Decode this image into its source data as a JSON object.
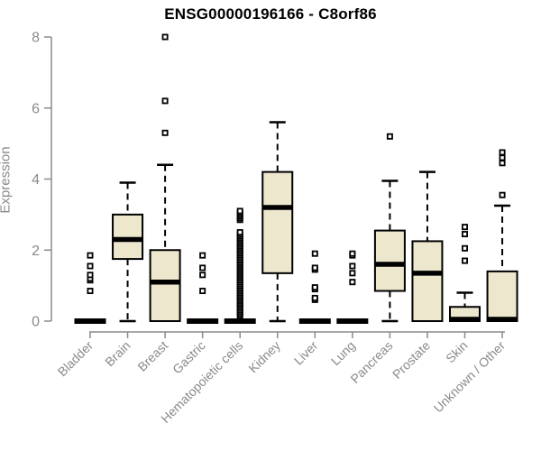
{
  "header": {
    "title": "ENSG00000196166 - C8orf86"
  },
  "chart_data": {
    "type": "boxplot",
    "title": "ENSG00000196166 - C8orf86",
    "xlabel": "",
    "ylabel": "Expression",
    "ylim": [
      0,
      8
    ],
    "yticks": [
      0,
      2,
      4,
      6,
      8
    ],
    "grid": false,
    "legend": "none",
    "colors": {
      "box_fill": "#EDE7CE",
      "box_stroke": "#000000",
      "median": "#000000",
      "whisker": "#000000",
      "outlier_stroke": "#000000",
      "outlier_fill": "#ffffff",
      "axis": "#8a8a8a",
      "tick_label": "#8a8a8a",
      "title": "#000000",
      "background": "#ffffff"
    },
    "categories": [
      "Bladder",
      "Brain",
      "Breast",
      "Gastric",
      "Hematopoietic cells",
      "Kidney",
      "Liver",
      "Lung",
      "Pancreas",
      "Prostate",
      "Skin",
      "Unknown / Other"
    ],
    "series": [
      {
        "name": "Bladder",
        "stats": {
          "low": 0,
          "q1": 0,
          "median": 0,
          "q3": 0,
          "high": 0
        },
        "outliers": [
          0.85,
          1.15,
          1.2,
          1.3,
          1.55,
          1.85
        ]
      },
      {
        "name": "Brain",
        "stats": {
          "low": 0,
          "q1": 1.75,
          "median": 2.3,
          "q3": 3.0,
          "high": 3.9
        },
        "outliers": []
      },
      {
        "name": "Breast",
        "stats": {
          "low": 0,
          "q1": 0,
          "median": 1.1,
          "q3": 2.0,
          "high": 4.4
        },
        "outliers": [
          5.3,
          6.2,
          8.0
        ]
      },
      {
        "name": "Gastric",
        "stats": {
          "low": 0,
          "q1": 0,
          "median": 0,
          "q3": 0,
          "high": 0
        },
        "outliers": [
          0.85,
          1.3,
          1.5,
          1.85
        ]
      },
      {
        "name": "Hematopoietic cells",
        "stats": {
          "low": 0,
          "q1": 0,
          "median": 0,
          "q3": 0,
          "high": 0
        },
        "outliers": [
          0.15,
          0.2,
          0.25,
          0.3,
          0.35,
          0.4,
          0.45,
          0.5,
          0.55,
          0.6,
          0.65,
          0.7,
          0.75,
          0.8,
          0.85,
          0.9,
          0.95,
          1.0,
          1.05,
          1.1,
          1.15,
          1.2,
          1.25,
          1.3,
          1.35,
          1.4,
          1.45,
          1.5,
          1.55,
          1.6,
          1.65,
          1.7,
          1.75,
          1.8,
          1.85,
          1.9,
          1.95,
          2.0,
          2.05,
          2.1,
          2.15,
          2.2,
          2.25,
          2.3,
          2.35,
          2.4,
          2.45,
          2.5,
          2.85,
          2.9,
          2.95,
          3.0,
          3.05,
          3.1
        ]
      },
      {
        "name": "Kidney",
        "stats": {
          "low": 0,
          "q1": 1.35,
          "median": 3.2,
          "q3": 4.2,
          "high": 5.6
        },
        "outliers": []
      },
      {
        "name": "Liver",
        "stats": {
          "low": 0,
          "q1": 0,
          "median": 0,
          "q3": 0,
          "high": 0
        },
        "outliers": [
          0.6,
          0.65,
          0.9,
          0.95,
          1.45,
          1.5,
          1.9
        ]
      },
      {
        "name": "Lung",
        "stats": {
          "low": 0,
          "q1": 0,
          "median": 0,
          "q3": 0,
          "high": 0
        },
        "outliers": [
          1.1,
          1.35,
          1.55,
          1.85,
          1.9
        ]
      },
      {
        "name": "Pancreas",
        "stats": {
          "low": 0,
          "q1": 0.85,
          "median": 1.6,
          "q3": 2.55,
          "high": 3.95
        },
        "outliers": [
          5.2
        ]
      },
      {
        "name": "Prostate",
        "stats": {
          "low": 0,
          "q1": 0,
          "median": 1.35,
          "q3": 2.25,
          "high": 4.2
        },
        "outliers": []
      },
      {
        "name": "Skin",
        "stats": {
          "low": 0,
          "q1": 0,
          "median": 0.05,
          "q3": 0.4,
          "high": 0.8
        },
        "outliers": [
          1.7,
          2.05,
          2.45,
          2.65
        ]
      },
      {
        "name": "Unknown / Other",
        "stats": {
          "low": 0,
          "q1": 0,
          "median": 0.05,
          "q3": 1.4,
          "high": 3.25
        },
        "outliers": [
          3.55,
          4.45,
          4.6,
          4.75
        ]
      }
    ]
  }
}
